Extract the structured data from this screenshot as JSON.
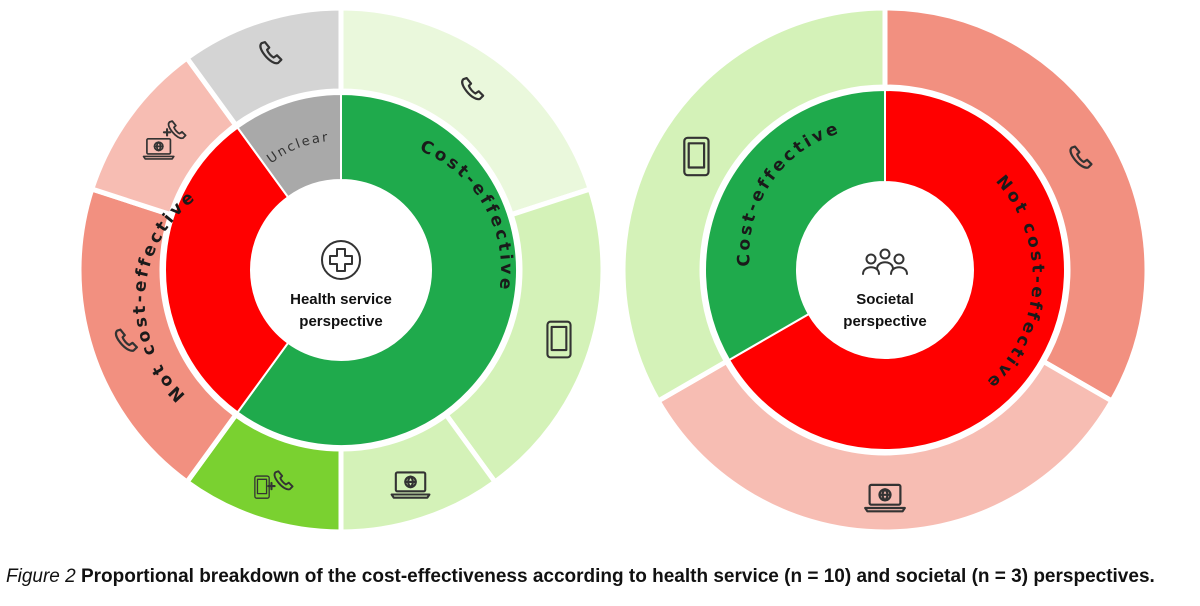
{
  "chart_data": [
    {
      "type": "pie",
      "subtype": "sunburst",
      "center_label": [
        "Health service",
        "perspective"
      ],
      "n": 10,
      "inner_ring": [
        {
          "label": "Cost-effective",
          "value": 6,
          "color": "#1faa4c"
        },
        {
          "label": "Not cost-effective",
          "value": 3,
          "color": "#ff0000"
        },
        {
          "label": "Unclear",
          "value": 1,
          "color": "#a9a9a9"
        }
      ],
      "outer_ring": [
        {
          "parent": "Cost-effective",
          "icon": "phone-icon",
          "value": 2,
          "color": "#eaf8dc"
        },
        {
          "parent": "Cost-effective",
          "icon": "tablet-icon",
          "value": 2,
          "color": "#d4f2b8"
        },
        {
          "parent": "Cost-effective",
          "icon": "laptop-icon",
          "value": 1,
          "color": "#d4f2b8"
        },
        {
          "parent": "Cost-effective",
          "icon": "tablet-phone-icon",
          "value": 1,
          "color": "#7ad130"
        },
        {
          "parent": "Not cost-effective",
          "icon": "phone-icon",
          "value": 2,
          "color": "#f29080"
        },
        {
          "parent": "Not cost-effective",
          "icon": "laptop-phone-icon",
          "value": 1,
          "color": "#f7bdb3"
        },
        {
          "parent": "Unclear",
          "icon": "phone-icon",
          "value": 1,
          "color": "#d4d4d4"
        }
      ]
    },
    {
      "type": "pie",
      "subtype": "sunburst",
      "center_label": [
        "Societal",
        "perspective"
      ],
      "n": 3,
      "inner_ring": [
        {
          "label": "Not cost-effective",
          "value": 2,
          "color": "#ff0000"
        },
        {
          "label": "Cost-effective",
          "value": 1,
          "color": "#1faa4c"
        }
      ],
      "outer_ring": [
        {
          "parent": "Not cost-effective",
          "icon": "phone-icon",
          "value": 1,
          "color": "#f29080"
        },
        {
          "parent": "Not cost-effective",
          "icon": "laptop-icon",
          "value": 1,
          "color": "#f7bdb3"
        },
        {
          "parent": "Cost-effective",
          "icon": "tablet-icon",
          "value": 1,
          "color": "#d4f2b8"
        }
      ]
    }
  ],
  "caption": {
    "figure_number": "Figure 2",
    "text": " Proportional breakdown of the cost-effectiveness according to health service (n = 10) and societal (n = 3) perspectives."
  }
}
